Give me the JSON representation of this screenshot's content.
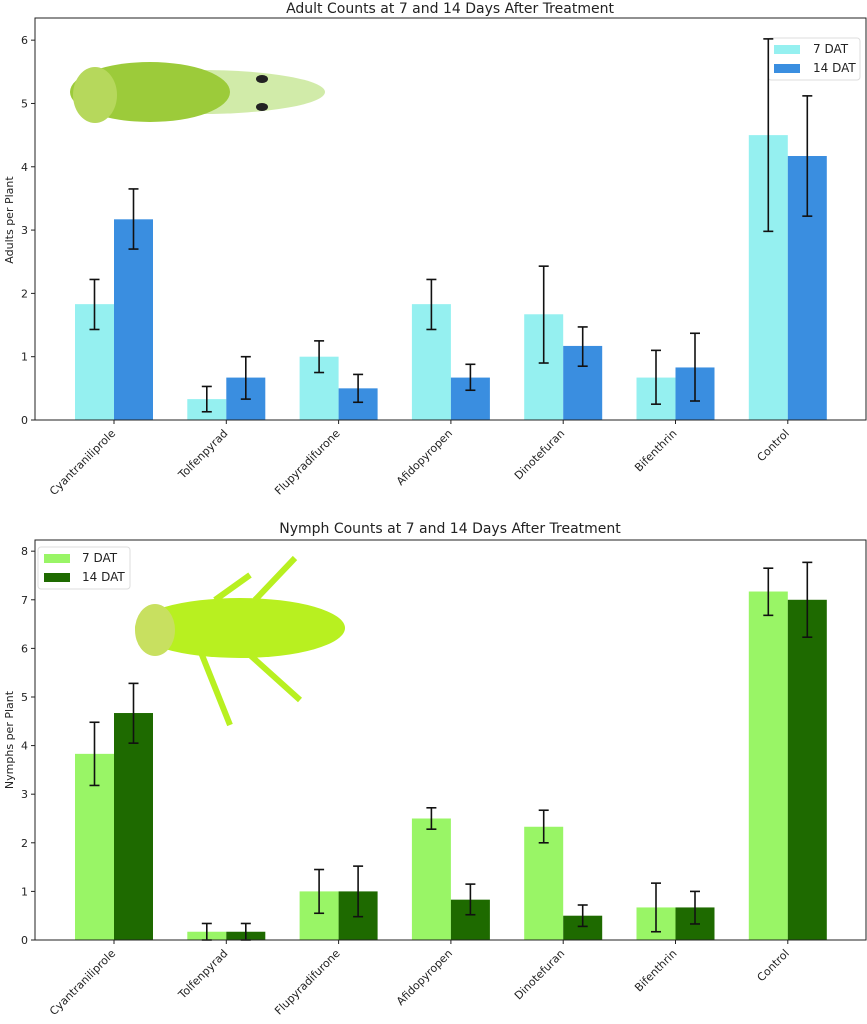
{
  "chart_data": [
    {
      "type": "bar",
      "title": "Adult Counts at 7 and 14 Days After Treatment",
      "xlabel": "",
      "ylabel": "Adults per Plant",
      "ylim": [
        0,
        6.35
      ],
      "yticks": [
        0,
        1,
        2,
        3,
        4,
        5,
        6
      ],
      "grid": false,
      "legend": "top-right",
      "categories": [
        "Cyantraniliprole",
        "Tolfenpyrad",
        "Flupyradifurone",
        "Afidopyropen",
        "Dinotefuran",
        "Bifenthrin",
        "Control"
      ],
      "series": [
        {
          "name": "7 DAT",
          "color": "#95F0F0",
          "values": [
            1.83,
            0.33,
            1.0,
            1.83,
            1.67,
            0.67,
            4.5
          ],
          "err_low": [
            1.43,
            0.13,
            0.75,
            1.43,
            0.9,
            0.25,
            2.98
          ],
          "err_high": [
            2.22,
            0.53,
            1.25,
            2.22,
            2.43,
            1.1,
            6.02
          ]
        },
        {
          "name": "14 DAT",
          "color": "#3A8EE0",
          "values": [
            3.17,
            0.67,
            0.5,
            0.67,
            1.17,
            0.83,
            4.17
          ],
          "err_low": [
            2.7,
            0.33,
            0.28,
            0.47,
            0.85,
            0.3,
            3.22
          ],
          "err_high": [
            3.65,
            1.0,
            0.72,
            0.88,
            1.47,
            1.37,
            5.12
          ]
        }
      ]
    },
    {
      "type": "bar",
      "title": "Nymph Counts at 7 and 14 Days After Treatment",
      "xlabel": "",
      "ylabel": "Nymphs per Plant",
      "ylim": [
        0,
        8.23
      ],
      "yticks": [
        0,
        1,
        2,
        3,
        4,
        5,
        6,
        7,
        8
      ],
      "grid": false,
      "legend": "top-left",
      "categories": [
        "Cyantraniliprole",
        "Tolfenpyrad",
        "Flupyradifurone",
        "Afidopyropen",
        "Dinotefuran",
        "Bifenthrin",
        "Control"
      ],
      "series": [
        {
          "name": "7 DAT",
          "color": "#99F566",
          "values": [
            3.83,
            0.17,
            1.0,
            2.5,
            2.33,
            0.67,
            7.17
          ],
          "err_low": [
            3.18,
            0.0,
            0.55,
            2.28,
            2.0,
            0.17,
            6.68
          ],
          "err_high": [
            4.48,
            0.34,
            1.45,
            2.72,
            2.67,
            1.17,
            7.65
          ]
        },
        {
          "name": "14 DAT",
          "color": "#1E6A00",
          "values": [
            4.67,
            0.17,
            1.0,
            0.83,
            0.5,
            0.67,
            7.0
          ],
          "err_low": [
            4.05,
            0.0,
            0.48,
            0.52,
            0.28,
            0.33,
            6.23
          ],
          "err_high": [
            5.28,
            0.34,
            1.52,
            1.15,
            0.72,
            1.0,
            7.77
          ]
        }
      ]
    }
  ]
}
